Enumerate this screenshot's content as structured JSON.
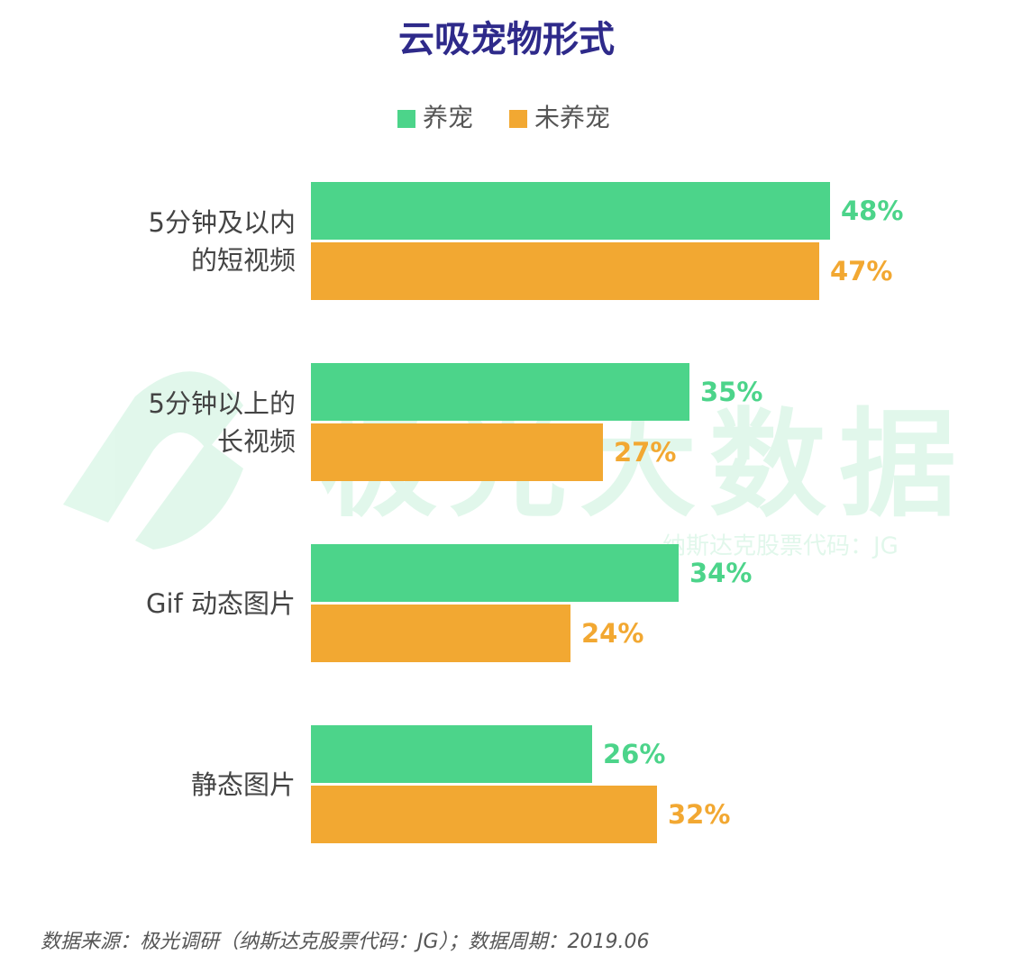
{
  "chart_data": {
    "type": "hbar_grouped",
    "title": "云吸宠物形式",
    "categories": [
      "5分钟及以内\n的短视频",
      "5分钟以上的\n长视频",
      "Gif 动态图片",
      "静态图片"
    ],
    "series": [
      {
        "name": "养宠",
        "color": "#4cd48a",
        "values": [
          48,
          35,
          34,
          26
        ],
        "value_labels": [
          "48%",
          "35%",
          "34%",
          "26%"
        ]
      },
      {
        "name": "未养宠",
        "color": "#f2a832",
        "values": [
          47,
          27,
          24,
          32
        ],
        "value_labels": [
          "47%",
          "27%",
          "24%",
          "32%"
        ]
      }
    ],
    "legend": "top",
    "watermark": {
      "title": "极光大数据",
      "subtitle": "纳斯达克股票代码：JG"
    },
    "source": "数据来源：极光调研（纳斯达克股票代码：JG）；数据周期：2019.06"
  }
}
